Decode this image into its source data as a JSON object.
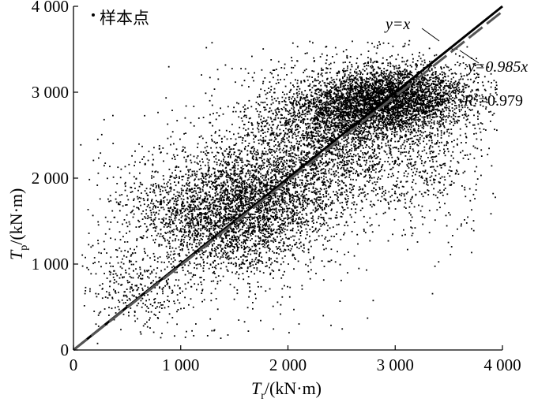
{
  "chart_data": {
    "type": "scatter",
    "x_label": {
      "main": "T",
      "sub": "r",
      "unit": "/(kN·m)"
    },
    "y_label": {
      "main": "T",
      "sub": "p",
      "unit": "/(kN·m)"
    },
    "xlim": [
      0,
      4000
    ],
    "ylim": [
      0,
      4000
    ],
    "x_ticks": [
      0,
      1000,
      2000,
      3000,
      4000
    ],
    "x_tick_labels": [
      "0",
      "1 000",
      "2 000",
      "3 000",
      "4 000"
    ],
    "y_ticks": [
      0,
      1000,
      2000,
      3000,
      4000
    ],
    "y_tick_labels": [
      "0",
      "1 000",
      "2 000",
      "3 000",
      "4 000"
    ],
    "legend": {
      "marker": "·",
      "label": "样本点",
      "placement": "top-left"
    },
    "grid": false,
    "series": [
      {
        "name": "样本点",
        "kind": "points",
        "color": "#000000",
        "clusters": [
          {
            "cx": 2900,
            "cy": 2900,
            "sx": 400,
            "sy": 180,
            "n": 3800,
            "rot": 0.15
          },
          {
            "cx": 2400,
            "cy": 2400,
            "sx": 550,
            "sy": 420,
            "n": 2600,
            "rot": 0.7
          },
          {
            "cx": 1600,
            "cy": 1650,
            "sx": 350,
            "sy": 300,
            "n": 2000,
            "rot": 0.6
          },
          {
            "cx": 1100,
            "cy": 1500,
            "sx": 300,
            "sy": 450,
            "n": 1000,
            "rot": 0.9
          },
          {
            "cx": 2000,
            "cy": 2000,
            "sx": 900,
            "sy": 600,
            "n": 1100,
            "rot": 0.78
          },
          {
            "cx": 600,
            "cy": 700,
            "sx": 250,
            "sy": 300,
            "n": 350,
            "rot": 0.78
          },
          {
            "cx": 3400,
            "cy": 2300,
            "sx": 250,
            "sy": 500,
            "n": 350,
            "rot": 0.0
          }
        ]
      },
      {
        "name": "",
        "kind": "line",
        "slope": 1.0,
        "style": "solid",
        "color": "#000000"
      },
      {
        "name": "",
        "kind": "line",
        "slope": 0.985,
        "style": "dashed",
        "color": "#555555"
      }
    ],
    "annotations": {
      "identity_label": "y=x",
      "fit_label": "y=0.985x",
      "r2_symbol": "R",
      "r2_superscript": "2",
      "r2_value": "=0.979"
    }
  }
}
